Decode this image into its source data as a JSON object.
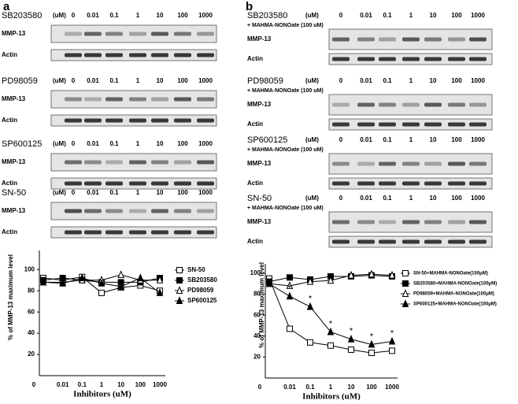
{
  "panels": [
    {
      "letter": "a",
      "blocks": [
        {
          "inhibitor": "SB203580",
          "unit": "(uM)",
          "concentrations": [
            "0",
            "0.01",
            "0.1",
            "1",
            "10",
            "100",
            "1000"
          ],
          "rows": [
            "MMP-13",
            "Actin"
          ]
        },
        {
          "inhibitor": "PD98059",
          "unit": "(uM)",
          "concentrations": [
            "0",
            "0.01",
            "0.1",
            "1",
            "10",
            "100",
            "1000"
          ],
          "rows": [
            "MMP-13",
            "Actin"
          ]
        },
        {
          "inhibitor": "SP600125",
          "unit": "(uM)",
          "concentrations": [
            "0",
            "0.01",
            "0.1",
            "1",
            "10",
            "100",
            "1000"
          ],
          "rows": [
            "MMP-13",
            "Actin"
          ]
        },
        {
          "inhibitor": "SN-50",
          "unit": "(uM)",
          "concentrations": [
            "0",
            "0.01",
            "0.1",
            "1",
            "10",
            "100",
            "1000"
          ],
          "rows": [
            "MMP-13",
            "Actin"
          ]
        }
      ]
    },
    {
      "letter": "b",
      "blocks": [
        {
          "inhibitor": "SB203580",
          "unit": "(uM)",
          "treatment": "+ MAHMA-NONOate (100 uM)",
          "concentrations": [
            "0",
            "0.01",
            "0.1",
            "1",
            "10",
            "100",
            "1000"
          ],
          "rows": [
            "MMP-13",
            "Actin"
          ]
        },
        {
          "inhibitor": "PD98059",
          "unit": "(uM)",
          "treatment": "+ MAHMA-NONOate (100 uM)",
          "concentrations": [
            "0",
            "0.01",
            "0.1",
            "1",
            "10",
            "100",
            "1000"
          ],
          "rows": [
            "MMP-13",
            "Actin"
          ]
        },
        {
          "inhibitor": "SP600125",
          "unit": "(uM)",
          "treatment": "+ MAHMA-NONOate (100 uM)",
          "concentrations": [
            "0",
            "0.01",
            "0.1",
            "1",
            "10",
            "100",
            "1000"
          ],
          "rows": [
            "MMP-13",
            "Actin"
          ]
        },
        {
          "inhibitor": "SN-50",
          "unit": "(uM)",
          "treatment": "+ MAHMA-NONOate (100 uM)",
          "concentrations": [
            "0",
            "0.01",
            "0.1",
            "1",
            "10",
            "100",
            "1000"
          ],
          "rows": [
            "MMP-13",
            "Actin"
          ]
        }
      ]
    }
  ],
  "chart_data": [
    {
      "type": "line",
      "x_label": "Inhibitors (uM)",
      "y_label": "% of MMP-13 maximum level",
      "categories": [
        "0",
        "0.01",
        "0.1",
        "1",
        "10",
        "100",
        "1000"
      ],
      "ylim": [
        0,
        118
      ],
      "yticks": [
        20,
        40,
        60,
        80,
        100
      ],
      "series": [
        {
          "name": "SN-50",
          "color": "#000000",
          "marker": "square-open",
          "values": [
            92,
            90,
            93,
            78,
            83,
            85,
            80
          ]
        },
        {
          "name": "SB203580",
          "color": "#000000",
          "marker": "square-filled",
          "values": [
            90,
            92,
            90,
            88,
            88,
            88,
            92
          ]
        },
        {
          "name": "PD98059",
          "color": "#000000",
          "marker": "triangle-open",
          "values": [
            88,
            88,
            90,
            90,
            95,
            90,
            90
          ]
        },
        {
          "name": "SP600125",
          "color": "#000000",
          "marker": "triangle-filled",
          "values": [
            88,
            87,
            92,
            87,
            84,
            92,
            78
          ]
        }
      ]
    },
    {
      "type": "line",
      "x_label": "Inhibitors (uM)",
      "y_label": "% of MMP-13 maximum level",
      "categories": [
        "0",
        "0.01",
        "0.1",
        "1",
        "10",
        "100",
        "1000"
      ],
      "ylim": [
        0,
        109
      ],
      "yticks": [
        20,
        40,
        60,
        80,
        100
      ],
      "series": [
        {
          "name": "SN-50+MAHMA-NONOate(100μM)",
          "color": "#000000",
          "marker": "square-open",
          "values": [
            95,
            47,
            34,
            31,
            27,
            24,
            26
          ]
        },
        {
          "name": "SB203580+MAHMA-NONOate(100μM)",
          "color": "#000000",
          "marker": "square-filled",
          "values": [
            92,
            96,
            94,
            97,
            97,
            98,
            97
          ]
        },
        {
          "name": "PD98059+MAHMA-NONOate(100μM)",
          "color": "#000000",
          "marker": "triangle-open",
          "values": [
            90,
            88,
            92,
            93,
            98,
            99,
            98
          ]
        },
        {
          "name": "SP600125+MAHMA-NONOate(100μM)",
          "color": "#000000",
          "marker": "triangle-filled",
          "values": [
            90,
            78,
            68,
            44,
            37,
            32,
            35
          ],
          "marks": [
            null,
            "*",
            "*",
            "*",
            "*",
            "*",
            "*"
          ]
        }
      ]
    }
  ]
}
